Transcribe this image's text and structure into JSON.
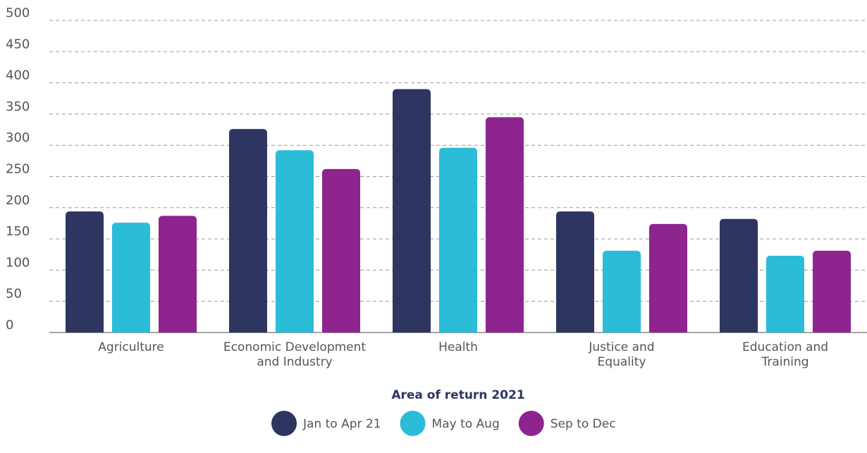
{
  "chart_data": {
    "type": "bar",
    "x_label": "Area of return 2021",
    "categories": [
      "Agriculture",
      "Economic Development\nand Industry",
      "Health",
      "Justice and\nEquality",
      "Education and\nTraining"
    ],
    "series": [
      {
        "name": "Jan to Apr 21",
        "color": "#2e3560",
        "values": [
          194,
          326,
          390,
          194,
          182
        ]
      },
      {
        "name": "May to Aug",
        "color": "#2bbcd8",
        "values": [
          176,
          292,
          296,
          131,
          123
        ]
      },
      {
        "name": "Sep to Dec",
        "color": "#8e258f",
        "values": [
          187,
          262,
          345,
          174,
          131
        ]
      }
    ],
    "ylim": [
      0,
      500
    ],
    "yticks": [
      0,
      50,
      100,
      150,
      200,
      250,
      300,
      350,
      400,
      450,
      500
    ],
    "grid": true
  }
}
